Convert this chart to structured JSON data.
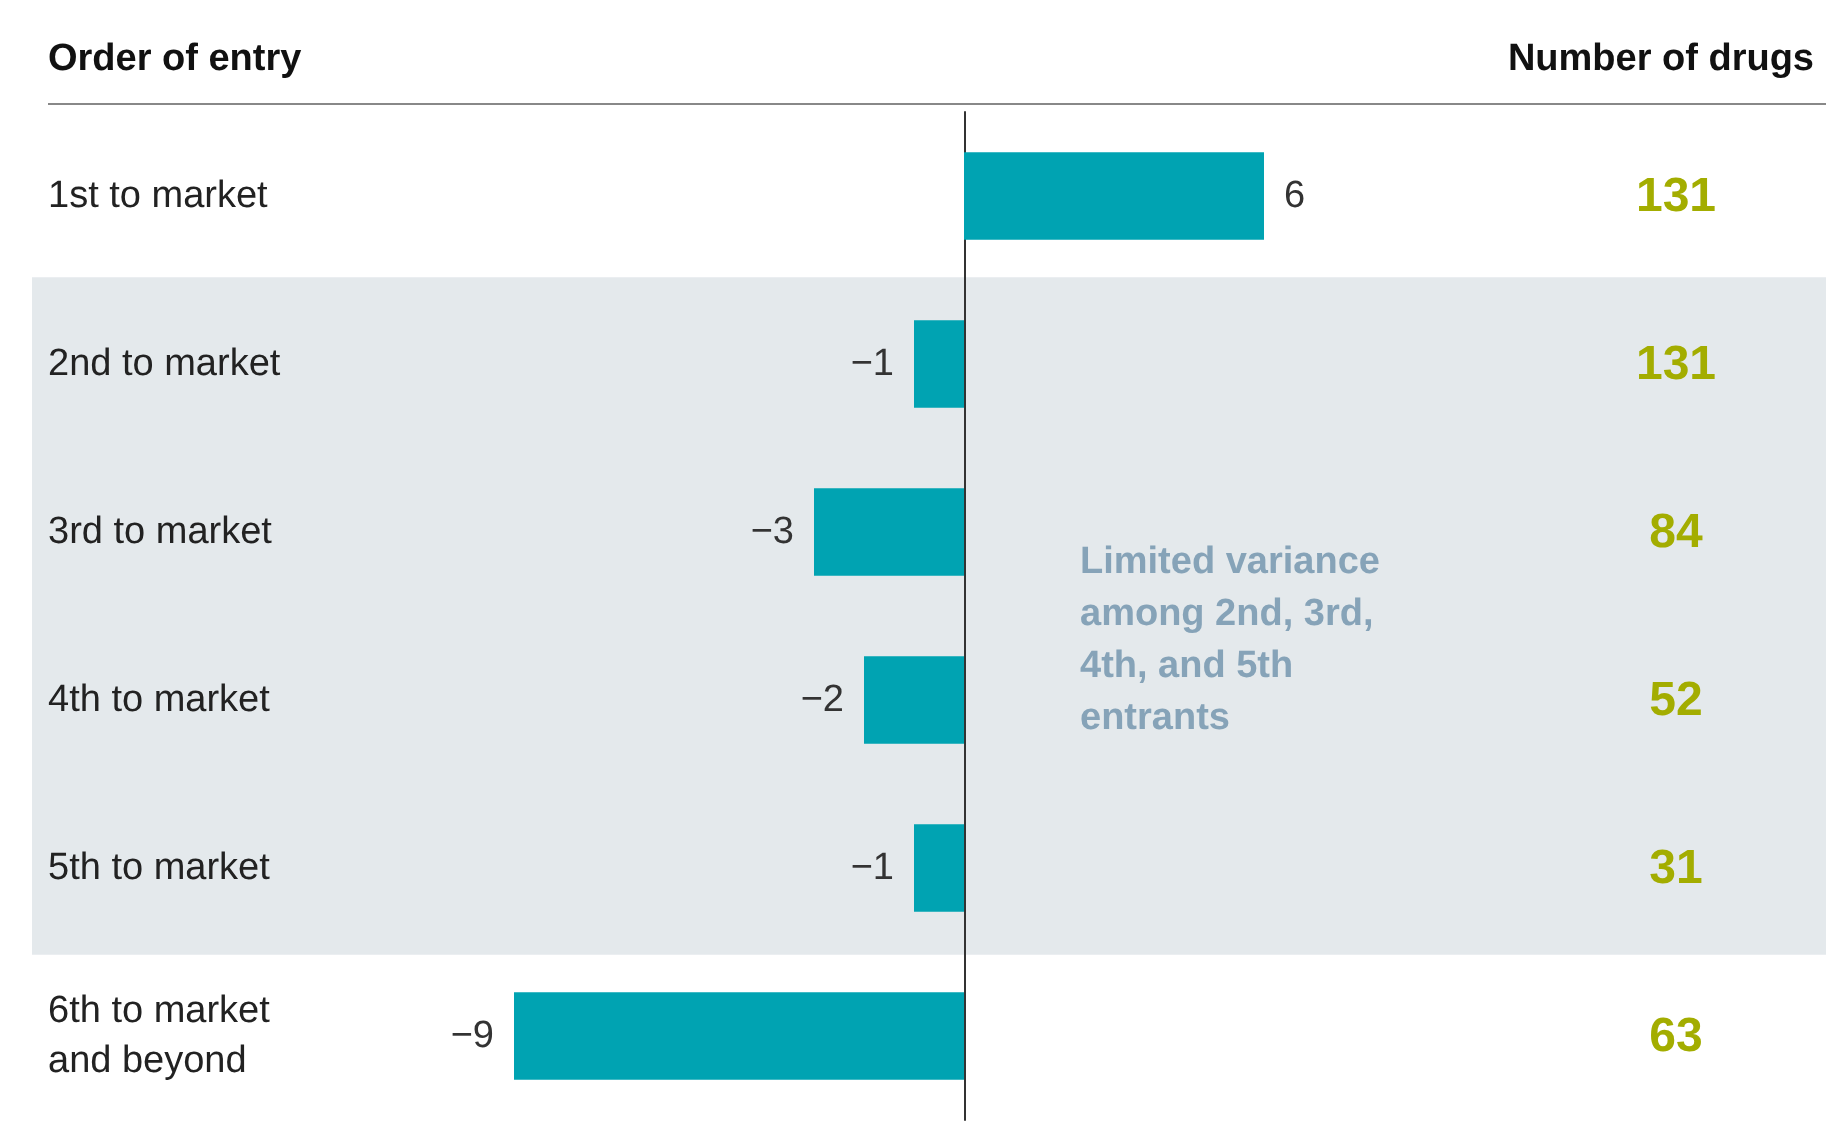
{
  "chart_data": {
    "type": "bar",
    "orientation": "horizontal",
    "ylabel": "Order of entry",
    "categories": [
      "1st to market",
      "2nd to market",
      "3rd to market",
      "4th to market",
      "5th to market",
      "6th to market and beyond"
    ],
    "series": [
      {
        "values": [
          6,
          -1,
          -3,
          -2,
          -1,
          -9
        ],
        "color": "#00a3b2"
      }
    ],
    "data_labels": true,
    "annotations": [
      "Number of drugs",
      "131",
      "131",
      "84",
      "52",
      "31",
      "63"
    ],
    "bands": [
      {
        "axis": "y",
        "from": "2nd to market",
        "to": "5th to market",
        "color": "#e4e9ec",
        "label": "Limited variance among 2nd, 3rd, 4th, and 5th entrants"
      }
    ]
  }
}
